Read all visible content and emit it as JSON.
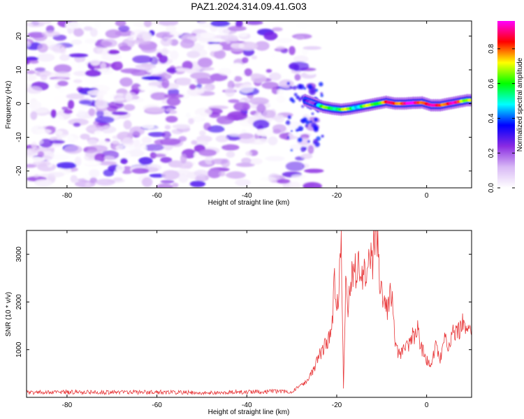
{
  "chart_data": [
    {
      "type": "heatmap",
      "title": "PAZ1.2024.314.09.41.G03",
      "xlabel": "Height of straight line (km)",
      "ylabel": "Frequency (Hz)",
      "xlim": [
        -89,
        10
      ],
      "ylim": [
        -25,
        24.5
      ],
      "xticks": [
        -80,
        -60,
        -40,
        -20,
        0
      ],
      "yticks": [
        -20,
        -10,
        0,
        10,
        20
      ],
      "colorbar": {
        "label": "Normalized spectral amplitude",
        "range": [
          0,
          0.96
        ],
        "ticks": [
          0.0,
          0.2,
          0.4,
          0.6,
          0.8
        ],
        "colormap": [
          "#ffffff",
          "#d8b8f5",
          "#8a2be2",
          "#0000ff",
          "#00ffff",
          "#00ff00",
          "#ffff00",
          "#ff0000",
          "#ff00ff"
        ]
      },
      "noise_region_km": [
        -89,
        -25
      ],
      "signal_track": {
        "height_km": [
          -27,
          -25,
          -23,
          -21,
          -19,
          -17,
          -15,
          -13,
          -11,
          -9,
          -7,
          -5,
          -3,
          -1,
          1,
          3,
          5,
          7,
          9,
          10
        ],
        "frequency_hz": [
          1,
          0,
          -1,
          -1.5,
          -1.8,
          -1.5,
          -1,
          -0.5,
          0,
          0.5,
          0,
          0,
          0.2,
          0.3,
          -0.5,
          -0.5,
          0,
          0.5,
          1,
          1
        ],
        "amplitude": [
          0.25,
          0.35,
          0.55,
          0.65,
          0.6,
          0.6,
          0.55,
          0.6,
          0.7,
          0.75,
          0.85,
          0.9,
          0.9,
          0.9,
          0.8,
          0.9,
          0.85,
          0.8,
          0.75,
          0.7
        ]
      }
    },
    {
      "type": "line",
      "xlabel": "Height of straight line (km)",
      "ylabel": "SNR (10 * v/v)",
      "xlim": [
        -89,
        10
      ],
      "ylim": [
        0,
        3500
      ],
      "xticks": [
        -80,
        -60,
        -40,
        -20,
        0
      ],
      "yticks": [
        1000,
        2000,
        3000
      ],
      "line_color": "#e8383a",
      "series": [
        {
          "x": [
            -89,
            -80,
            -70,
            -60,
            -50,
            -40,
            -30,
            -27,
            -25,
            -24,
            -23,
            -22,
            -21,
            -20.5,
            -20,
            -19.5,
            -19,
            -18.5,
            -18,
            -17.5,
            -17,
            -16.5,
            -16,
            -15,
            -14,
            -13,
            -12,
            -11.5,
            -11,
            -10.5,
            -10,
            -9,
            -8,
            -7.5,
            -7,
            -6.5,
            -6,
            -5,
            -4,
            -3,
            -2,
            -1,
            0,
            1,
            2,
            3,
            4,
            5,
            6,
            7,
            8,
            9,
            10
          ],
          "y": [
            100,
            110,
            105,
            110,
            100,
            115,
            130,
            300,
            600,
            900,
            1000,
            1200,
            1500,
            2500,
            1900,
            2300,
            3500,
            200,
            2400,
            2000,
            2300,
            2700,
            2600,
            2800,
            2500,
            2700,
            2900,
            3500,
            3400,
            2500,
            2100,
            1800,
            2200,
            2000,
            1200,
            1000,
            900,
            1000,
            1100,
            1300,
            1400,
            1000,
            800,
            700,
            1100,
            800,
            1200,
            1100,
            1400,
            1400,
            1600,
            1400,
            1300
          ]
        }
      ]
    }
  ]
}
